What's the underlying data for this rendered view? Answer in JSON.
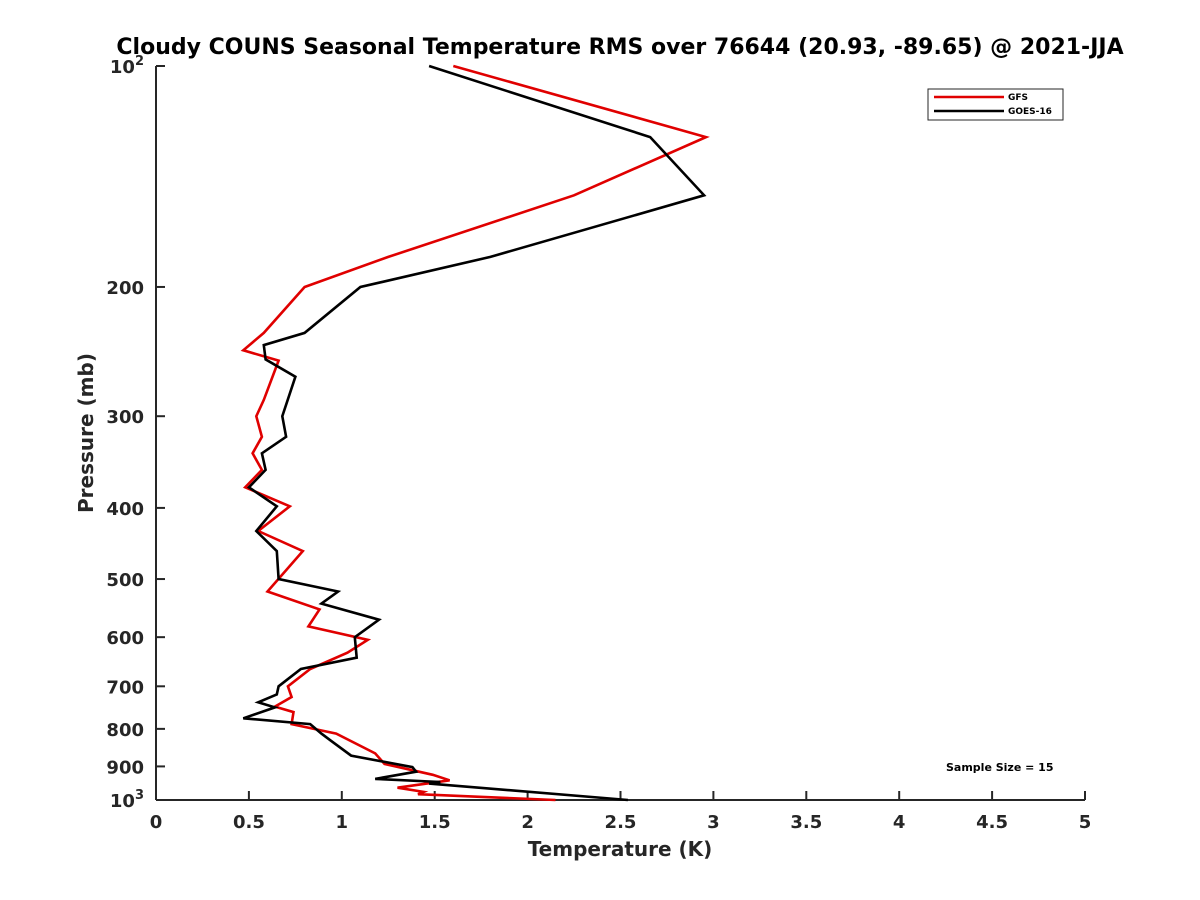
{
  "chart_data": {
    "type": "line",
    "title": "Cloudy COUNS Seasonal Temperature RMS over 76644 (20.93, -89.65) @ 2021-JJA",
    "xlabel": "Temperature (K)",
    "ylabel": "Pressure (mb)",
    "xlim": [
      0,
      5
    ],
    "ylim": [
      100,
      1000
    ],
    "yscale": "log",
    "y_reversed": true,
    "grid": false,
    "legend_position": "top-right",
    "x_ticks": [
      "0",
      "0.5",
      "1",
      "1.5",
      "2",
      "2.5",
      "3",
      "3.5",
      "4",
      "4.5",
      "5"
    ],
    "x_tick_values": [
      0,
      0.5,
      1,
      1.5,
      2,
      2.5,
      3,
      3.5,
      4,
      4.5,
      5
    ],
    "y_ticks": [
      {
        "value": 100,
        "base": "10",
        "exp": "2"
      },
      {
        "value": 200,
        "base": "200",
        "exp": ""
      },
      {
        "value": 300,
        "base": "300",
        "exp": ""
      },
      {
        "value": 400,
        "base": "400",
        "exp": ""
      },
      {
        "value": 500,
        "base": "500",
        "exp": ""
      },
      {
        "value": 600,
        "base": "600",
        "exp": ""
      },
      {
        "value": 700,
        "base": "700",
        "exp": ""
      },
      {
        "value": 800,
        "base": "800",
        "exp": ""
      },
      {
        "value": 900,
        "base": "900",
        "exp": ""
      },
      {
        "value": 1000,
        "base": "10",
        "exp": "3"
      }
    ],
    "annotation": "Sample Size = 15",
    "series": [
      {
        "name": "GFS",
        "color": "#e00000",
        "points": [
          [
            1.6,
            100
          ],
          [
            2.96,
            125
          ],
          [
            2.25,
            150
          ],
          [
            1.25,
            182
          ],
          [
            0.8,
            200
          ],
          [
            0.58,
            231
          ],
          [
            0.47,
            244
          ],
          [
            0.66,
            252
          ],
          [
            0.58,
            285
          ],
          [
            0.54,
            300
          ],
          [
            0.57,
            320
          ],
          [
            0.52,
            337
          ],
          [
            0.57,
            355
          ],
          [
            0.48,
            375
          ],
          [
            0.72,
            398
          ],
          [
            0.55,
            430
          ],
          [
            0.79,
            458
          ],
          [
            0.6,
            520
          ],
          [
            0.88,
            550
          ],
          [
            0.82,
            580
          ],
          [
            1.14,
            605
          ],
          [
            1.03,
            630
          ],
          [
            0.83,
            663
          ],
          [
            0.71,
            700
          ],
          [
            0.73,
            724
          ],
          [
            0.64,
            746
          ],
          [
            0.74,
            759
          ],
          [
            0.73,
            788
          ],
          [
            0.97,
            812
          ],
          [
            1.18,
            864
          ],
          [
            1.23,
            893
          ],
          [
            1.49,
            924
          ],
          [
            1.58,
            940
          ],
          [
            1.3,
            962
          ],
          [
            1.44,
            975
          ],
          [
            1.41,
            982
          ],
          [
            2.15,
            1000
          ]
        ]
      },
      {
        "name": "GOES-16",
        "color": "#000000",
        "points": [
          [
            1.47,
            100
          ],
          [
            2.66,
            125
          ],
          [
            2.95,
            150
          ],
          [
            1.8,
            182
          ],
          [
            1.1,
            200
          ],
          [
            0.8,
            231
          ],
          [
            0.58,
            240
          ],
          [
            0.59,
            251
          ],
          [
            0.75,
            265
          ],
          [
            0.68,
            300
          ],
          [
            0.7,
            320
          ],
          [
            0.57,
            337
          ],
          [
            0.59,
            355
          ],
          [
            0.5,
            375
          ],
          [
            0.65,
            398
          ],
          [
            0.54,
            430
          ],
          [
            0.65,
            458
          ],
          [
            0.66,
            500
          ],
          [
            0.98,
            520
          ],
          [
            0.89,
            540
          ],
          [
            1.2,
            568
          ],
          [
            1.07,
            600
          ],
          [
            1.08,
            640
          ],
          [
            0.78,
            663
          ],
          [
            0.66,
            700
          ],
          [
            0.65,
            718
          ],
          [
            0.55,
            736
          ],
          [
            0.64,
            748
          ],
          [
            0.47,
            774
          ],
          [
            0.83,
            788
          ],
          [
            0.89,
            812
          ],
          [
            0.94,
            830
          ],
          [
            1.05,
            870
          ],
          [
            1.38,
            902
          ],
          [
            1.4,
            915
          ],
          [
            1.18,
            936
          ],
          [
            1.53,
            945
          ],
          [
            1.47,
            950
          ],
          [
            2.54,
            1000
          ]
        ]
      }
    ]
  }
}
